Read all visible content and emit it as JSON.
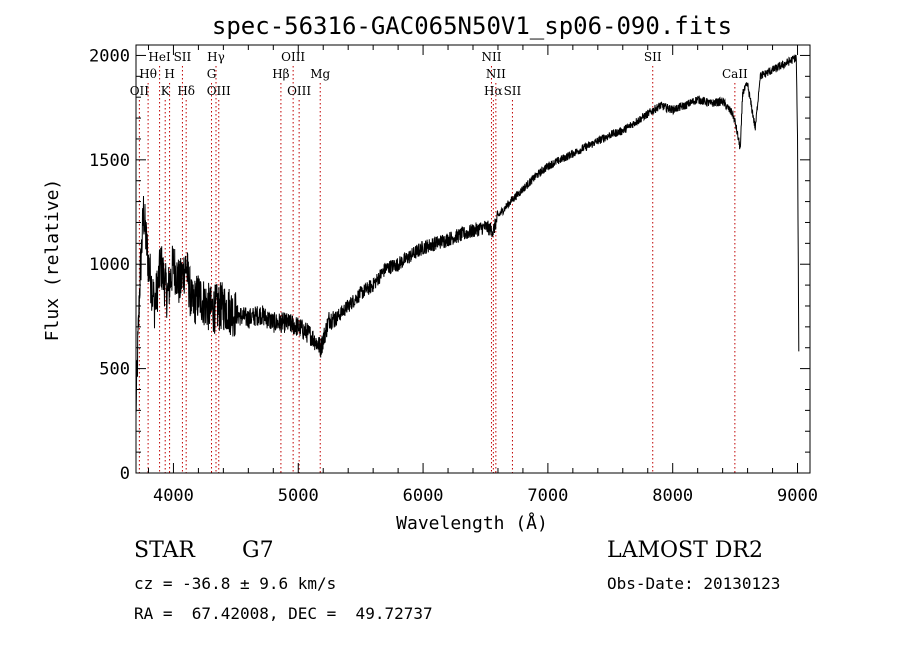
{
  "chart_data": {
    "type": "line",
    "title": "spec-56316-GAC065N50V1_sp06-090.fits",
    "xlabel": "Wavelength (Å)",
    "ylabel": "Flux (relative)",
    "xlim": [
      3700,
      9100
    ],
    "ylim": [
      0,
      2050
    ],
    "x_ticks": [
      4000,
      5000,
      6000,
      7000,
      8000,
      9000
    ],
    "y_ticks": [
      0,
      500,
      1000,
      1500,
      2000
    ],
    "grid": false,
    "line_color": "#000000",
    "marker_color": "#c00000",
    "spectrum_trend": {
      "x": [
        3700,
        3730,
        3760,
        3800,
        3850,
        3900,
        3950,
        4000,
        4050,
        4100,
        4150,
        4200,
        4300,
        4400,
        4500,
        4600,
        4700,
        4800,
        4900,
        5000,
        5100,
        5180,
        5250,
        5300,
        5400,
        5500,
        5600,
        5700,
        5800,
        5900,
        6000,
        6100,
        6200,
        6300,
        6400,
        6500,
        6563,
        6600,
        6700,
        6800,
        6900,
        7000,
        7100,
        7200,
        7300,
        7400,
        7500,
        7600,
        7700,
        7800,
        7900,
        8000,
        8100,
        8200,
        8300,
        8400,
        8480,
        8500,
        8542,
        8560,
        8600,
        8662,
        8700,
        8800,
        8900,
        8990,
        9000,
        9010
      ],
      "y": [
        300,
        900,
        1250,
        1000,
        800,
        1000,
        850,
        1000,
        900,
        1000,
        800,
        850,
        780,
        800,
        760,
        740,
        760,
        720,
        720,
        700,
        660,
        600,
        740,
        740,
        800,
        860,
        900,
        980,
        1000,
        1040,
        1080,
        1100,
        1120,
        1140,
        1160,
        1180,
        1160,
        1230,
        1300,
        1360,
        1420,
        1470,
        1500,
        1530,
        1560,
        1590,
        1620,
        1640,
        1680,
        1720,
        1760,
        1740,
        1760,
        1790,
        1770,
        1780,
        1720,
        1680,
        1550,
        1820,
        1860,
        1650,
        1900,
        1930,
        1960,
        1990,
        1600,
        600
      ]
    },
    "lines": [
      {
        "x": 3727,
        "label": "OII",
        "row": 3
      },
      {
        "x": 3797,
        "label": "Hθ",
        "row": 2
      },
      {
        "x": 3889,
        "label": "HeI",
        "row": 1
      },
      {
        "x": 3934,
        "label": "K",
        "row": 3
      },
      {
        "x": 3969,
        "label": "H",
        "row": 2
      },
      {
        "x": 4072,
        "label": "SII",
        "row": 1
      },
      {
        "x": 4102,
        "label": "Hδ",
        "row": 3
      },
      {
        "x": 4305,
        "label": "G",
        "row": 2
      },
      {
        "x": 4341,
        "label": "Hγ",
        "row": 1
      },
      {
        "x": 4363,
        "label": "OIII",
        "row": 3
      },
      {
        "x": 4861,
        "label": "Hβ",
        "row": 2
      },
      {
        "x": 4959,
        "label": "OIII",
        "row": 1
      },
      {
        "x": 5007,
        "label": "OIII",
        "row": 3
      },
      {
        "x": 5176,
        "label": "Mg",
        "row": 2
      },
      {
        "x": 6548,
        "label": "NII",
        "row": 1
      },
      {
        "x": 6563,
        "label": "Hα",
        "row": 3
      },
      {
        "x": 6583,
        "label": "NII",
        "row": 2
      },
      {
        "x": 6716,
        "label": "SII",
        "row": 3
      },
      {
        "x": 7840,
        "label": "SII",
        "row": 1
      },
      {
        "x": 8498,
        "label": "CaII",
        "row": 2
      }
    ]
  },
  "info": {
    "class": "STAR",
    "subclass": "G7",
    "cz": "cz = -36.8 ± 9.6 km/s",
    "radec": "RA =  67.42008, DEC =  49.72737",
    "survey": "LAMOST DR2",
    "obs_date": "Obs-Date: 20130123"
  }
}
